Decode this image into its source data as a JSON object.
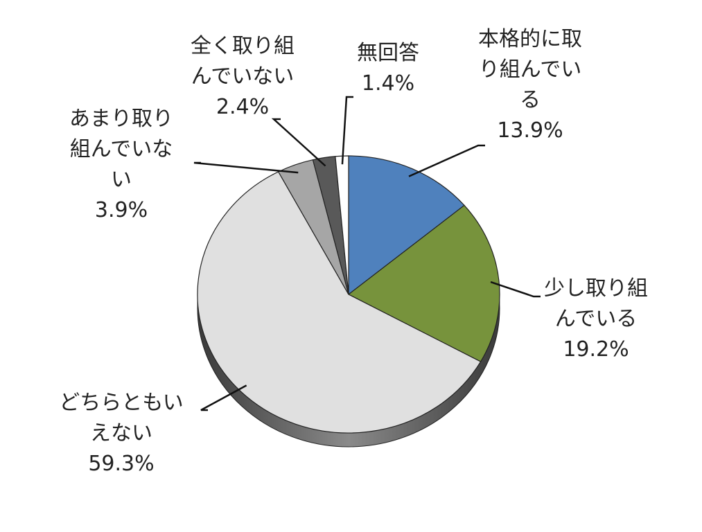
{
  "chart_data": {
    "type": "pie",
    "categories": [
      "本格的に取り組んでいる",
      "少し取り組んでいる",
      "どちらともいえない",
      "あまり取り組んでいない",
      "全く取り組んでいない",
      "無回答"
    ],
    "values": [
      13.9,
      19.2,
      59.3,
      3.9,
      2.4,
      1.4
    ],
    "value_labels": [
      "13.9%",
      "19.2%",
      "59.3%",
      "3.9%",
      "2.4%",
      "1.4%"
    ],
    "colors": [
      "#4f81bd",
      "#77933c",
      "#e0e0e0",
      "#a6a6a6",
      "#595959",
      "#ffffff"
    ]
  }
}
